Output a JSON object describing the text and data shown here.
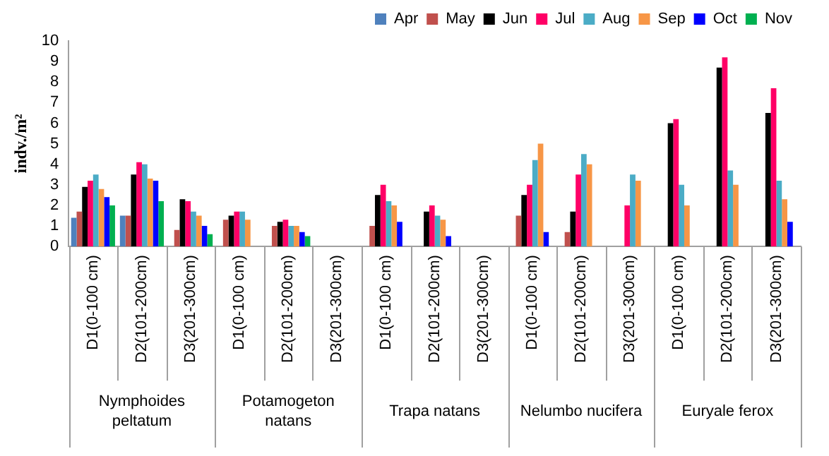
{
  "chart_data": {
    "type": "bar",
    "ylabel": "indv./m²",
    "categories": [
      "D1(0-100 cm)",
      "D2(101-200cm)",
      "D3(201-300cm)",
      "D1(0-100 cm)",
      "D2(101-200cm)",
      "D3(201-300cm)",
      "D1(0-100 cm)",
      "D2(101-200cm)",
      "D3(201-300cm)",
      "D1(0-100 cm)",
      "D2(101-200cm)",
      "D3(201-300cm)",
      "D1(0-100 cm)",
      "D2(101-200cm)",
      "D3(201-300cm)"
    ],
    "annotations": [
      "Nymphoides peltatum",
      "Potamogeton natans",
      "Trapa natans",
      "Nelumbo nucifera",
      "Euryale ferox"
    ],
    "series": [
      {
        "name": "Apr",
        "color": "#4f81bd",
        "values": [
          1.4,
          1.5,
          null,
          null,
          null,
          null,
          null,
          null,
          null,
          null,
          null,
          null,
          null,
          null,
          null
        ]
      },
      {
        "name": "May",
        "color": "#c0504d",
        "values": [
          1.7,
          1.5,
          0.8,
          1.3,
          1.0,
          null,
          1.0,
          null,
          null,
          1.5,
          0.7,
          null,
          null,
          null,
          null
        ]
      },
      {
        "name": "Jun",
        "color": "#000000",
        "values": [
          2.9,
          3.5,
          2.3,
          1.5,
          1.2,
          null,
          2.5,
          1.7,
          null,
          2.5,
          1.7,
          null,
          6.0,
          8.7,
          6.5
        ]
      },
      {
        "name": "Jul",
        "color": "#ff0066",
        "values": [
          3.2,
          4.1,
          2.2,
          1.7,
          1.3,
          null,
          3.0,
          2.0,
          null,
          3.0,
          3.5,
          2.0,
          6.2,
          9.2,
          7.7
        ]
      },
      {
        "name": "Aug",
        "color": "#4bacc6",
        "values": [
          3.5,
          4.0,
          1.7,
          1.7,
          1.0,
          null,
          2.2,
          1.5,
          null,
          4.2,
          4.5,
          3.5,
          3.0,
          3.7,
          3.2
        ]
      },
      {
        "name": "Sep",
        "color": "#f79646",
        "values": [
          2.8,
          3.3,
          1.5,
          1.3,
          1.0,
          null,
          2.0,
          1.3,
          null,
          5.0,
          4.0,
          3.2,
          2.0,
          3.0,
          2.3
        ]
      },
      {
        "name": "Oct",
        "color": "#0000ff",
        "values": [
          2.4,
          3.2,
          1.0,
          null,
          0.7,
          null,
          1.2,
          0.5,
          null,
          0.7,
          null,
          null,
          null,
          null,
          1.2
        ]
      },
      {
        "name": "Nov",
        "color": "#00b050",
        "values": [
          2.0,
          2.2,
          0.6,
          null,
          0.5,
          null,
          null,
          null,
          null,
          null,
          null,
          null,
          null,
          null,
          null
        ]
      }
    ],
    "ylim": [
      0,
      10
    ],
    "yticks": [
      0,
      1,
      2,
      3,
      4,
      5,
      6,
      7,
      8,
      9,
      10
    ],
    "grid": false,
    "legend": "top right"
  }
}
